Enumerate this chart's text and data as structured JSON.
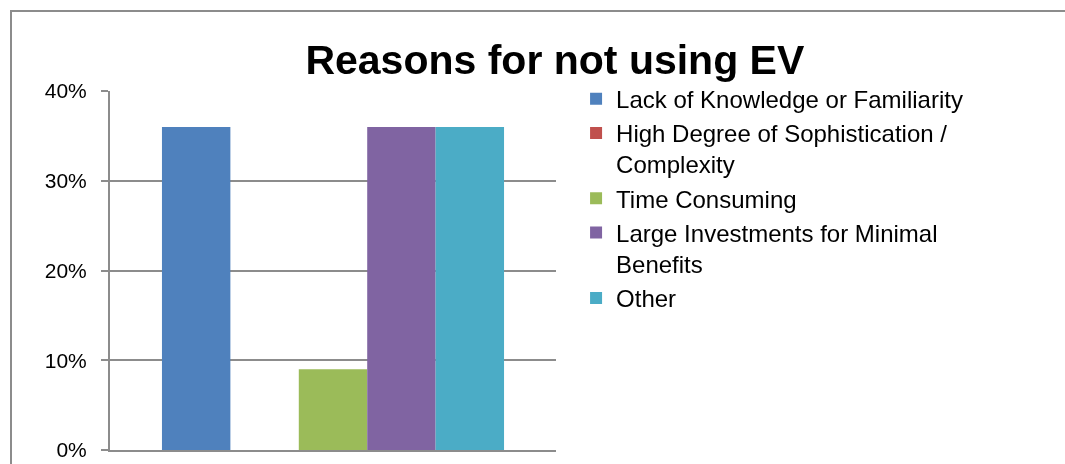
{
  "chart_data": {
    "type": "bar",
    "title": "Reasons for not using EV",
    "categories": [
      null
    ],
    "series": [
      {
        "name": "Lack of Knowledge or Familiarity",
        "color": "#4f81bd",
        "values": [
          36
        ]
      },
      {
        "name": "High Degree of Sophistication / Complexity",
        "color": "#c0504d",
        "values": [
          0
        ]
      },
      {
        "name": "Time Consuming",
        "color": "#9bbb59",
        "values": [
          9
        ]
      },
      {
        "name": "Large Investments for Minimal Benefits",
        "color": "#8064a2",
        "values": [
          36
        ]
      },
      {
        "name": "Other",
        "color": "#4bacc6",
        "values": [
          36
        ]
      }
    ],
    "ylim": [
      0,
      40
    ],
    "yticks": [
      {
        "value": 0,
        "label": "0%"
      },
      {
        "value": 10,
        "label": "10%"
      },
      {
        "value": 20,
        "label": "20%"
      },
      {
        "value": 30,
        "label": "30%"
      },
      {
        "value": 40,
        "label": "40%"
      }
    ],
    "grid": "y",
    "legend": "right",
    "tick_labels": "y"
  }
}
